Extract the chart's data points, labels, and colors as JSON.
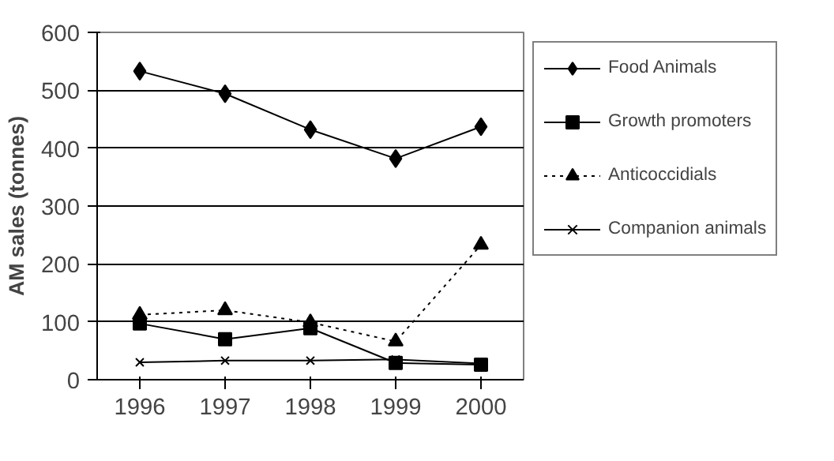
{
  "chart_data": {
    "type": "line",
    "ylabel": "AM sales (tonnes)",
    "categories": [
      "1996",
      "1997",
      "1998",
      "1999",
      "2000"
    ],
    "ylim": [
      0,
      600
    ],
    "yticks": [
      0,
      100,
      200,
      300,
      400,
      500,
      600
    ],
    "grid": "y",
    "legend": "right",
    "series": [
      {
        "name": "Food Animals",
        "color": "#000000",
        "marker": "diamond",
        "line_style": "solid",
        "values": [
          533,
          494,
          432,
          382,
          437
        ]
      },
      {
        "name": "Growth promoters",
        "color": "#000000",
        "marker": "square",
        "line_style": "solid",
        "values": [
          97,
          70,
          89,
          29,
          26
        ]
      },
      {
        "name": "Anticoccidials",
        "color": "#000000",
        "marker": "triangle",
        "line_style": "dotted",
        "values": [
          112,
          120,
          99,
          66,
          233
        ]
      },
      {
        "name": "Companion animals",
        "color": "#000000",
        "marker": "cross",
        "line_style": "solid",
        "values": [
          30,
          33,
          33,
          35,
          28
        ]
      }
    ]
  }
}
